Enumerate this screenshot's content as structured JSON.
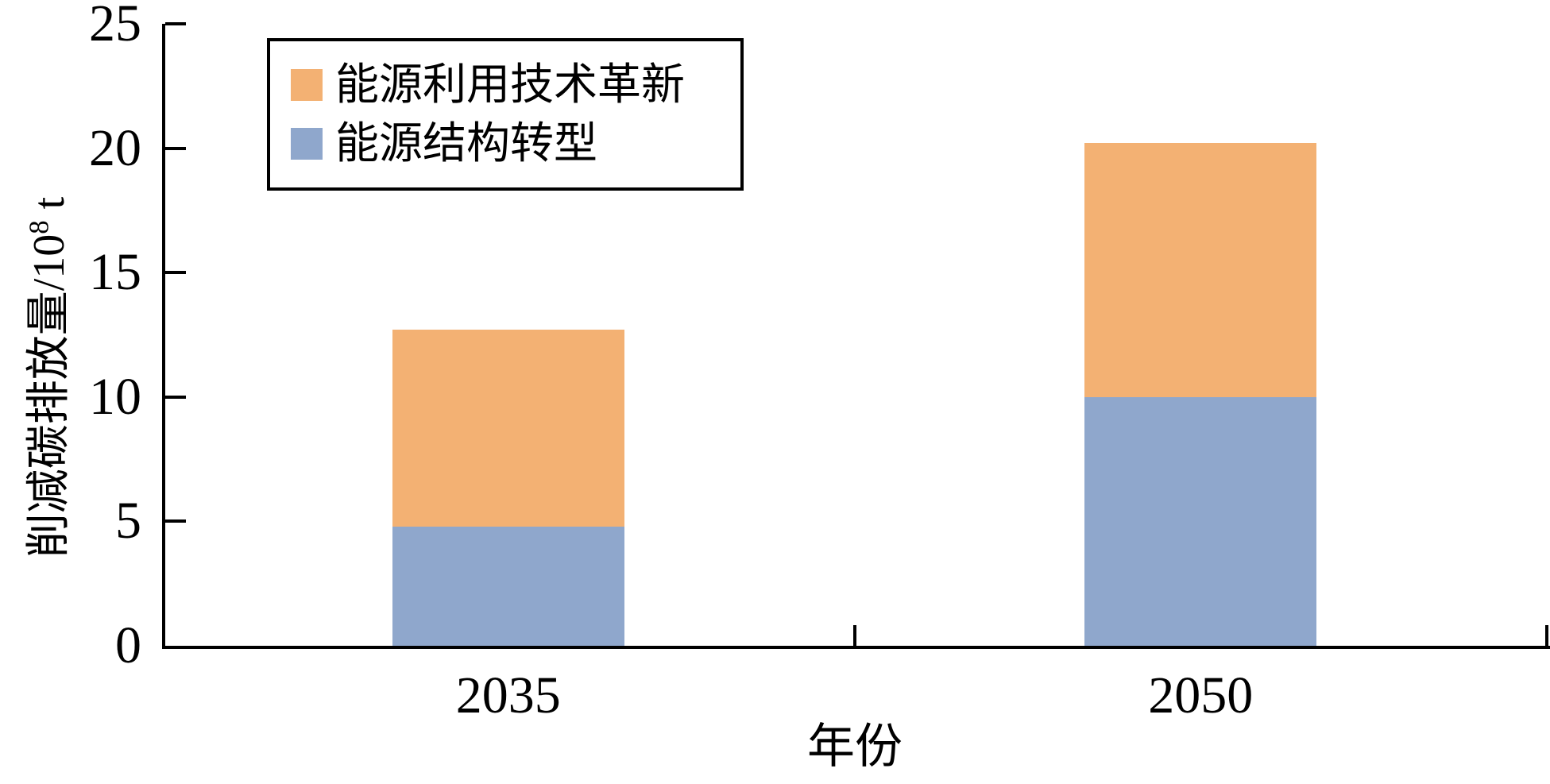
{
  "chart_data": {
    "type": "bar",
    "stacked": true,
    "title": "",
    "xlabel": "年份",
    "ylabel": "削减碳排放量/10⁸ t",
    "ylabel_parts": {
      "prefix": "削减碳排放量/10",
      "sup": "8",
      "suffix": " t"
    },
    "categories": [
      "2035",
      "2050"
    ],
    "series": [
      {
        "name": "能源利用技术革新",
        "color": "#F3B173",
        "values": [
          7.9,
          10.2
        ]
      },
      {
        "name": "能源结构转型",
        "color": "#8FA7CC",
        "values": [
          4.8,
          10.0
        ]
      }
    ],
    "stack_totals": [
      12.7,
      20.2
    ],
    "ylim": [
      0,
      25
    ],
    "yticks": [
      0,
      5,
      10,
      15,
      20,
      25
    ],
    "grid": false,
    "legend_position": "top-left",
    "tick_style": "inside"
  },
  "colors": {
    "axis": "#000000",
    "background": "#FFFFFF",
    "text": "#000000"
  }
}
